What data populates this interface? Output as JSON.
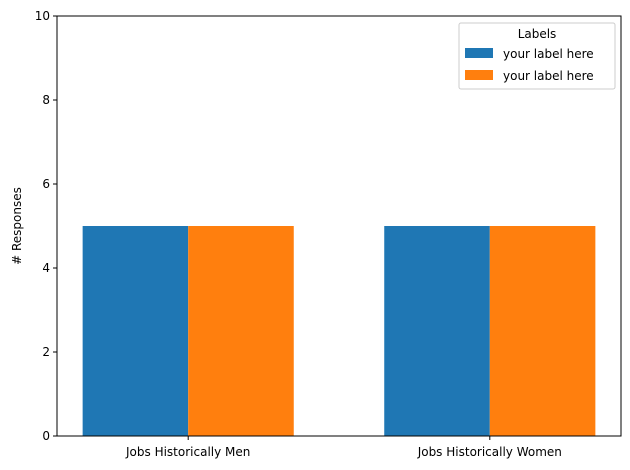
{
  "chart_data": {
    "type": "bar",
    "title": "",
    "xlabel": "",
    "ylabel": "# Responses",
    "categories": [
      "Jobs Historically Men",
      "Jobs Historically Women"
    ],
    "series": [
      {
        "name": "your label here",
        "values": [
          5,
          5
        ],
        "color": "#1f77b4"
      },
      {
        "name": "your label here",
        "values": [
          5,
          5
        ],
        "color": "#ff7f0e"
      }
    ],
    "ylim": [
      0,
      10
    ],
    "yticks": [
      0,
      2,
      4,
      6,
      8,
      10
    ],
    "grid": false,
    "legend": {
      "title": "Labels",
      "placement": "top-right"
    }
  }
}
